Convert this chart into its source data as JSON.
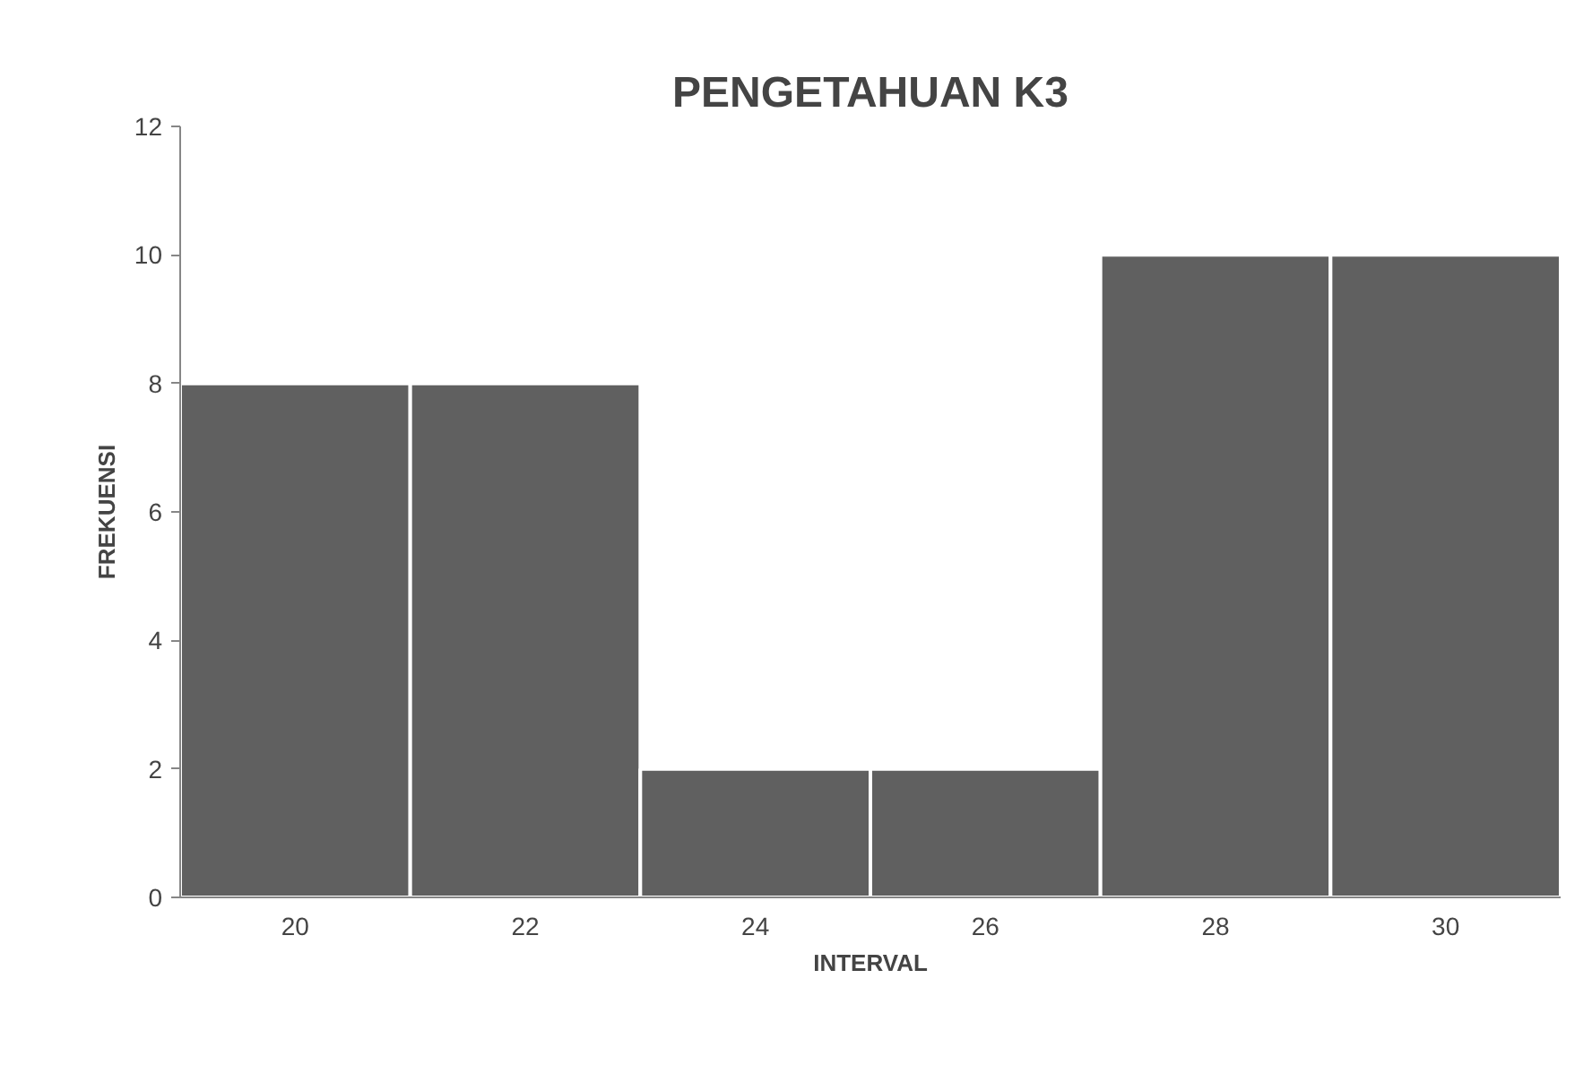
{
  "chart_data": {
    "type": "bar",
    "title": "PENGETAHUAN K3",
    "xlabel": "INTERVAL",
    "ylabel": "FREKUENSI",
    "categories": [
      "20",
      "22",
      "24",
      "26",
      "28",
      "30"
    ],
    "values": [
      8,
      8,
      2,
      2,
      10,
      10
    ],
    "color": "#606060",
    "ylim": [
      0,
      12
    ],
    "yticks": [
      0,
      2,
      4,
      6,
      8,
      10,
      12
    ],
    "grid": false
  }
}
